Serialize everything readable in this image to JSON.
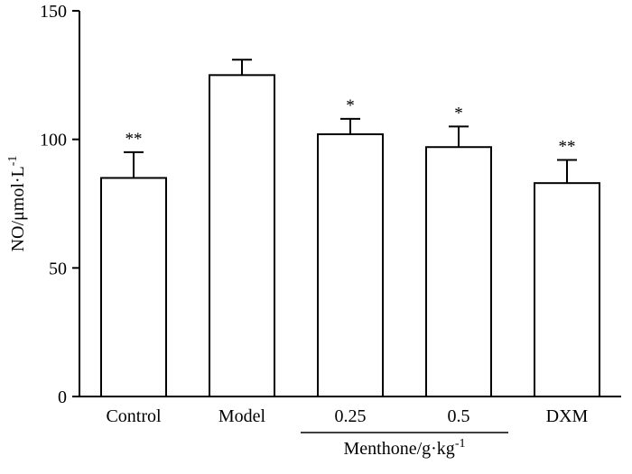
{
  "chart_data": {
    "type": "bar",
    "categories": [
      "Control",
      "Model",
      "0.25",
      "0.5",
      "DXM"
    ],
    "values": [
      85,
      125,
      102,
      97,
      83
    ],
    "errors": [
      10,
      6,
      6,
      8,
      9
    ],
    "annotations": [
      "**",
      "",
      "*",
      "*",
      "**"
    ],
    "title": "",
    "xlabel": "",
    "ylabel": "NO/μmol·L",
    "ylabel_sup": "-1",
    "yticks": [
      0,
      50,
      100,
      150
    ],
    "ylim": [
      0,
      150
    ],
    "group_label": "Menthone/g·kg",
    "group_label_sup": "-1",
    "group_span_categories": [
      "0.25",
      "0.5"
    ],
    "legend": "none",
    "grid": false,
    "bar_fill": "#ffffff",
    "bar_stroke": "#000000",
    "axis_color": "#000000",
    "background": "#ffffff"
  }
}
